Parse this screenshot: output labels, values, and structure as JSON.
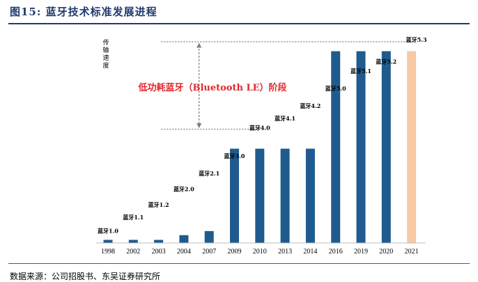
{
  "figure": {
    "title": "图15:  蓝牙技术标准发展进程",
    "source": "数据来源：公司招股书、东吴证券研究所"
  },
  "colors": {
    "title": "#1f3a6e",
    "bar": "#1f5b8e",
    "highlight_bar": "#f8c9a5",
    "annotation_text": "#e0282e",
    "guide_line": "#7f7f7f"
  },
  "chart_data": {
    "type": "bar",
    "title": "",
    "ylabel": "传输速度",
    "xlabel": "",
    "categories": [
      "1998",
      "2002",
      "2003",
      "2004",
      "2007",
      "2009",
      "2010",
      "2013",
      "2014",
      "2016",
      "2019",
      "2020",
      "2021"
    ],
    "values": [
      1,
      1,
      1,
      2.5,
      3.8,
      30,
      30,
      30,
      30,
      61,
      61,
      61,
      61
    ],
    "ylim": [
      0,
      64
    ],
    "version_labels": [
      "蓝牙1.0",
      "蓝牙1.1",
      "蓝牙1.2",
      "蓝牙2.0",
      "蓝牙2.1",
      "蓝牙3.0",
      "蓝牙4.0",
      "蓝牙4.1",
      "蓝牙4.2",
      "蓝牙5.0",
      "蓝牙5.1",
      "蓝牙5.2",
      "蓝牙5.3"
    ],
    "version_label_values": [
      3.2,
      7.5,
      11.5,
      16.5,
      21.5,
      27,
      36,
      39,
      43,
      48.5,
      54,
      57,
      64
    ],
    "version_label_bar_index": [
      0,
      1,
      2,
      3,
      4,
      5,
      6,
      7,
      8,
      9,
      10,
      11,
      12
    ],
    "highlight_index": 12,
    "reference_lines": [
      {
        "value": 64,
        "from_index": 1,
        "to_index": 12
      },
      {
        "value": 36.2,
        "from_index": 1,
        "to_index": 6
      }
    ],
    "annotation": {
      "text": "低功耗蓝牙（Bluetooth LE）阶段",
      "value": 50,
      "index": 3.6
    }
  }
}
